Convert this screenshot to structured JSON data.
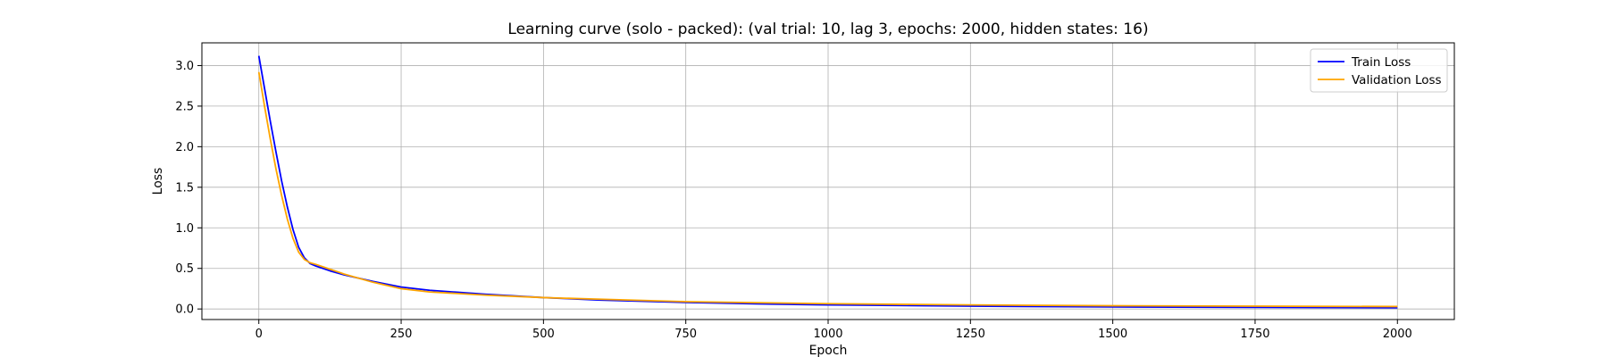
{
  "chart_data": {
    "type": "line",
    "title": "Learning curve (solo - packed): (val trial: 10, lag 3, epochs: 2000, hidden states: 16)",
    "xlabel": "Epoch",
    "ylabel": "Loss",
    "xlim": [
      -100,
      2100
    ],
    "ylim": [
      -0.13,
      3.28
    ],
    "xticks": [
      0,
      250,
      500,
      750,
      1000,
      1250,
      1500,
      1750,
      2000
    ],
    "yticks": [
      0.0,
      0.5,
      1.0,
      1.5,
      2.0,
      2.5,
      3.0
    ],
    "xtick_labels": [
      "0",
      "250",
      "500",
      "750",
      "1000",
      "1250",
      "1500",
      "1750",
      "2000"
    ],
    "ytick_labels": [
      "0.0",
      "0.5",
      "1.0",
      "1.5",
      "2.0",
      "2.5",
      "3.0"
    ],
    "grid": true,
    "legend_position": "top-right",
    "series": [
      {
        "name": "Train Loss",
        "color": "#0000ff",
        "x": [
          0,
          10,
          20,
          30,
          40,
          50,
          60,
          70,
          80,
          90,
          100,
          125,
          150,
          200,
          250,
          300,
          400,
          500,
          600,
          750,
          900,
          1000,
          1250,
          1500,
          1750,
          2000
        ],
        "y": [
          3.12,
          2.72,
          2.32,
          1.94,
          1.58,
          1.26,
          0.98,
          0.76,
          0.63,
          0.56,
          0.53,
          0.47,
          0.42,
          0.34,
          0.27,
          0.23,
          0.18,
          0.14,
          0.11,
          0.08,
          0.06,
          0.05,
          0.035,
          0.025,
          0.02,
          0.015
        ]
      },
      {
        "name": "Validation Loss",
        "color": "#ffa500",
        "x": [
          0,
          10,
          20,
          30,
          40,
          50,
          60,
          70,
          80,
          90,
          100,
          125,
          150,
          200,
          250,
          300,
          400,
          500,
          600,
          750,
          900,
          1000,
          1250,
          1500,
          1750,
          2000
        ],
        "y": [
          2.92,
          2.5,
          2.1,
          1.73,
          1.4,
          1.11,
          0.87,
          0.7,
          0.61,
          0.57,
          0.55,
          0.49,
          0.43,
          0.33,
          0.25,
          0.21,
          0.17,
          0.14,
          0.12,
          0.09,
          0.075,
          0.065,
          0.05,
          0.04,
          0.035,
          0.03
        ]
      }
    ]
  }
}
